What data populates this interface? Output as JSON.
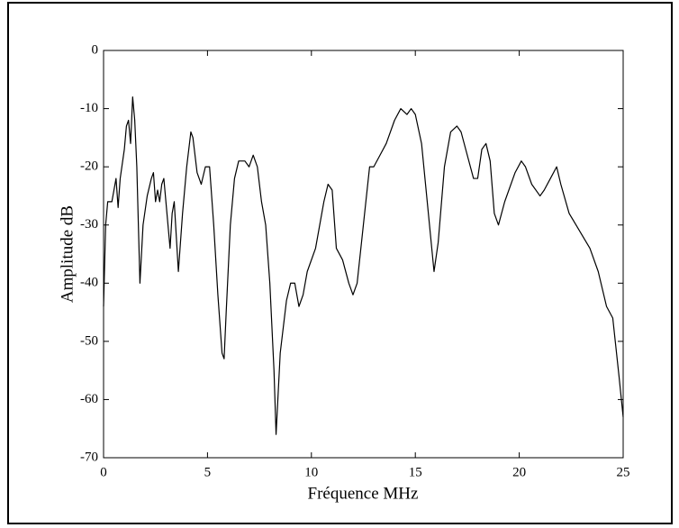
{
  "chart_data": {
    "type": "line",
    "xlabel": "Fréquence MHz",
    "ylabel": "Amplitude dB",
    "x": [
      0,
      0.1,
      0.2,
      0.4,
      0.5,
      0.6,
      0.7,
      0.8,
      1.0,
      1.1,
      1.2,
      1.3,
      1.4,
      1.5,
      1.6,
      1.75,
      1.9,
      2.1,
      2.3,
      2.4,
      2.5,
      2.6,
      2.7,
      2.8,
      2.9,
      3.0,
      3.2,
      3.3,
      3.4,
      3.5,
      3.6,
      3.8,
      4.0,
      4.2,
      4.3,
      4.5,
      4.7,
      4.9,
      5.1,
      5.3,
      5.5,
      5.7,
      5.8,
      5.9,
      6.1,
      6.3,
      6.5,
      6.8,
      7.0,
      7.2,
      7.4,
      7.6,
      7.8,
      8.0,
      8.2,
      8.3,
      8.5,
      8.8,
      9.0,
      9.2,
      9.4,
      9.6,
      9.8,
      10.2,
      10.6,
      10.8,
      11.0,
      11.2,
      11.5,
      11.8,
      12.0,
      12.2,
      12.5,
      12.8,
      13.0,
      13.3,
      13.6,
      14.0,
      14.3,
      14.6,
      14.8,
      15.0,
      15.3,
      15.6,
      15.9,
      16.1,
      16.4,
      16.7,
      17.0,
      17.2,
      17.5,
      17.8,
      18.0,
      18.2,
      18.4,
      18.6,
      18.8,
      19.0,
      19.3,
      19.8,
      20.1,
      20.3,
      20.6,
      21.0,
      21.2,
      21.5,
      21.8,
      22.0,
      22.4,
      22.9,
      23.4,
      23.8,
      24.2,
      24.5,
      24.8,
      25.0
    ],
    "values": [
      -44,
      -30,
      -26,
      -26,
      -24,
      -22,
      -27,
      -22,
      -17,
      -13,
      -12,
      -16,
      -8,
      -12,
      -20,
      -40,
      -30,
      -25,
      -22,
      -21,
      -26,
      -24,
      -26,
      -23,
      -22,
      -26,
      -34,
      -28,
      -26,
      -32,
      -38,
      -28,
      -20,
      -14,
      -15,
      -21,
      -23,
      -20,
      -20,
      -30,
      -42,
      -52,
      -53,
      -45,
      -30,
      -22,
      -19,
      -19,
      -20,
      -18,
      -20,
      -26,
      -30,
      -40,
      -55,
      -66,
      -52,
      -43,
      -40,
      -40,
      -44,
      -42,
      -38,
      -34,
      -26,
      -23,
      -24,
      -34,
      -36,
      -40,
      -42,
      -40,
      -30,
      -20,
      -20,
      -18,
      -16,
      -12,
      -10,
      -11,
      -10,
      -11,
      -16,
      -27,
      -38,
      -33,
      -20,
      -14,
      -13,
      -14,
      -18,
      -22,
      -22,
      -17,
      -16,
      -19,
      -28,
      -30,
      -26,
      -21,
      -19,
      -20,
      -23,
      -25,
      -24,
      -22,
      -20,
      -23,
      -28,
      -31,
      -34,
      -38,
      -44,
      -46,
      -56,
      -63
    ],
    "color": "#000000",
    "xlim": [
      0,
      25
    ],
    "xticks": [
      0,
      5,
      10,
      15,
      20,
      25
    ],
    "ylim": [
      -70,
      0
    ],
    "yticks": [
      -70,
      -60,
      -50,
      -40,
      -30,
      -20,
      -10,
      0
    ]
  }
}
